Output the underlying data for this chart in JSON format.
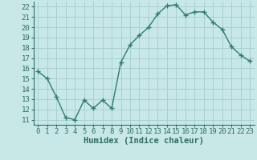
{
  "x": [
    0,
    1,
    2,
    3,
    4,
    5,
    6,
    7,
    8,
    9,
    10,
    11,
    12,
    13,
    14,
    15,
    16,
    17,
    18,
    19,
    20,
    21,
    22,
    23
  ],
  "y": [
    15.7,
    15.0,
    13.2,
    11.2,
    11.0,
    12.9,
    12.1,
    12.9,
    12.1,
    16.6,
    18.3,
    19.2,
    20.0,
    21.3,
    22.1,
    22.2,
    21.2,
    21.5,
    21.5,
    20.5,
    19.8,
    18.1,
    17.3,
    16.7
  ],
  "line_color": "#2e7d6e",
  "marker": "+",
  "bg_color": "#c8e8e8",
  "grid_color": "#aad0d0",
  "xlabel": "Humidex (Indice chaleur)",
  "ylim": [
    10.5,
    22.5
  ],
  "xlim": [
    -0.5,
    23.5
  ],
  "yticks": [
    11,
    12,
    13,
    14,
    15,
    16,
    17,
    18,
    19,
    20,
    21,
    22
  ],
  "xticks": [
    0,
    1,
    2,
    3,
    4,
    5,
    6,
    7,
    8,
    9,
    10,
    11,
    12,
    13,
    14,
    15,
    16,
    17,
    18,
    19,
    20,
    21,
    22,
    23
  ],
  "tick_color": "#2e6e60",
  "label_color": "#2e6e60",
  "font_size": 6.5,
  "xlabel_fontsize": 7.5,
  "line_width": 1.0,
  "marker_size": 4.5,
  "marker_edge_width": 1.0
}
